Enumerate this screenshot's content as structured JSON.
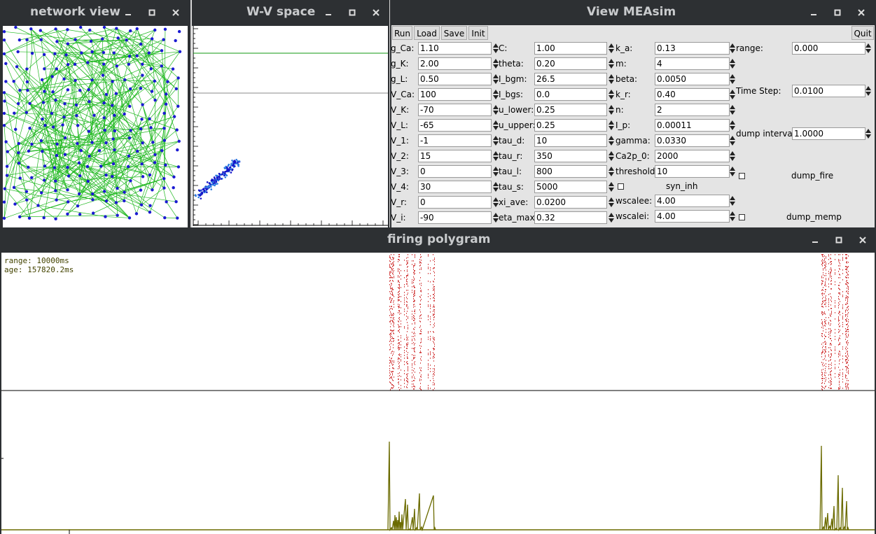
{
  "network_view": {
    "title": "network view"
  },
  "wv_space": {
    "title": "W-V space"
  },
  "measim": {
    "title": "View MEAsim",
    "buttons": {
      "run": "Run",
      "load": "Load",
      "save": "Save",
      "init": "Init",
      "quit": "Quit"
    },
    "col1": [
      {
        "label": "g_Ca:",
        "value": "1.10"
      },
      {
        "label": "g_K:",
        "value": "2.00"
      },
      {
        "label": "g_L:",
        "value": "0.50"
      },
      {
        "label": "V_Ca:",
        "value": "100"
      },
      {
        "label": "V_K:",
        "value": "-70"
      },
      {
        "label": "V_L:",
        "value": "-65"
      },
      {
        "label": "V_1:",
        "value": "-1"
      },
      {
        "label": "V_2:",
        "value": "15"
      },
      {
        "label": "V_3:",
        "value": "0"
      },
      {
        "label": "V_4:",
        "value": "30"
      },
      {
        "label": "V_r:",
        "value": "0"
      },
      {
        "label": "V_i:",
        "value": "-90"
      }
    ],
    "col2": [
      {
        "label": "C:",
        "value": "1.00"
      },
      {
        "label": "theta:",
        "value": "0.20"
      },
      {
        "label": "I_bgm:",
        "value": "26.5"
      },
      {
        "label": "I_bgs:",
        "value": "0.0"
      },
      {
        "label": "u_lower:",
        "value": "0.25"
      },
      {
        "label": "u_upper:",
        "value": "0.25"
      },
      {
        "label": "tau_d:",
        "value": "10"
      },
      {
        "label": "tau_r:",
        "value": "350"
      },
      {
        "label": "tau_l:",
        "value": "800"
      },
      {
        "label": "tau_s:",
        "value": "5000"
      },
      {
        "label": "xi_ave:",
        "value": "0.0200"
      },
      {
        "label": "eta_max:",
        "value": "0.32"
      }
    ],
    "col3": [
      {
        "label": "k_a:",
        "value": "0.13"
      },
      {
        "label": "m:",
        "value": "4"
      },
      {
        "label": "beta:",
        "value": "0.0050"
      },
      {
        "label": "k_r:",
        "value": "0.40"
      },
      {
        "label": "n:",
        "value": "2"
      },
      {
        "label": "I_p:",
        "value": "0.00011"
      },
      {
        "label": "gamma:",
        "value": "0.0330"
      },
      {
        "label": "Ca2p_0:",
        "value": "2000"
      },
      {
        "label": "threshold:",
        "value": "10"
      }
    ],
    "syn_inh": "syn_inh",
    "wscalee": {
      "label": "wscalee:",
      "value": "4.00"
    },
    "wscalei": {
      "label": "wscalei:",
      "value": "4.00"
    },
    "range": {
      "label": "range:",
      "value": "0.000"
    },
    "time_step": {
      "label": "Time Step:",
      "value": "0.0100"
    },
    "dump_interval": {
      "label": "dump interval:",
      "value": "1.0000"
    },
    "dump_fire": "dump_fire",
    "dump_memp": "dump_memp"
  },
  "firing_polygram": {
    "title": "firing polygram",
    "range_text": "range: 10000ms",
    "age_text": "age: 157820.2ms"
  },
  "colors": {
    "titlebar": "#2d3033",
    "edge": "#22b922",
    "node": "#1a1ad2",
    "raster": "#cc2222",
    "rate": "#6b6b00"
  }
}
